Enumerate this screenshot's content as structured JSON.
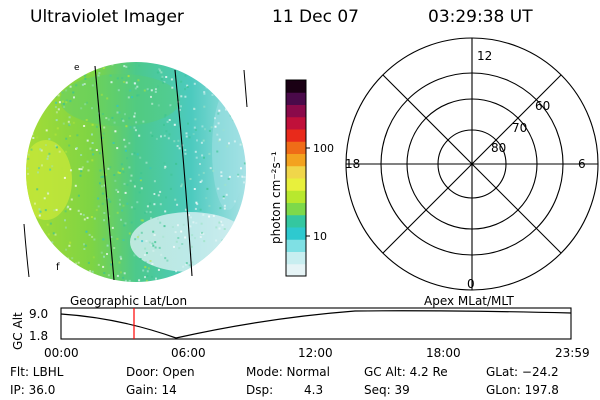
{
  "header": {
    "instrument": "Ultraviolet Imager",
    "date": "11 Dec 07",
    "time": "03:29:38 UT"
  },
  "colorbar": {
    "unit": "photon cm⁻²s⁻¹",
    "tick_labels": [
      "100",
      "10"
    ],
    "colors": [
      "#e6f4f6",
      "#c8eef0",
      "#7fe0e4",
      "#2ec9cf",
      "#34c7a0",
      "#7dd94a",
      "#b8e82e",
      "#e8f03c",
      "#f0d64a",
      "#f3a21f",
      "#ef6c17",
      "#e82a1b",
      "#c0103a",
      "#8a0a4a",
      "#4a0a4a",
      "#1a0014"
    ]
  },
  "image_panel": {
    "label": "Geographic Lat/Lon",
    "glyph_e": "e",
    "glyph_f": "f"
  },
  "polar_panel": {
    "label": "Apex MLat/MLT",
    "mlt_labels": {
      "top": "12",
      "left": "18",
      "right": "6",
      "bottom": "0"
    },
    "lat_labels": [
      "60",
      "70",
      "80"
    ]
  },
  "altitude_plot": {
    "ylabel": "GC Alt",
    "y_ticks": [
      "9.0",
      "1.8"
    ],
    "x_ticks": [
      "00:00",
      "06:00",
      "12:00",
      "18:00",
      "23:59"
    ],
    "marker_time": "03:29:38",
    "marker_color": "#ff0000"
  },
  "status": {
    "flt": "Flt: LBHL",
    "ip": "IP: 36.0",
    "door": "Door: Open",
    "gain": "Gain: 14",
    "mode": "Mode: Normal",
    "dsp_label": "Dsp:",
    "dsp_value": "4.3",
    "gc_alt": "GC Alt: 4.2 Re",
    "seq": "Seq: 39",
    "glat": "GLat: −24.2",
    "glon": "GLon: 197.8"
  }
}
